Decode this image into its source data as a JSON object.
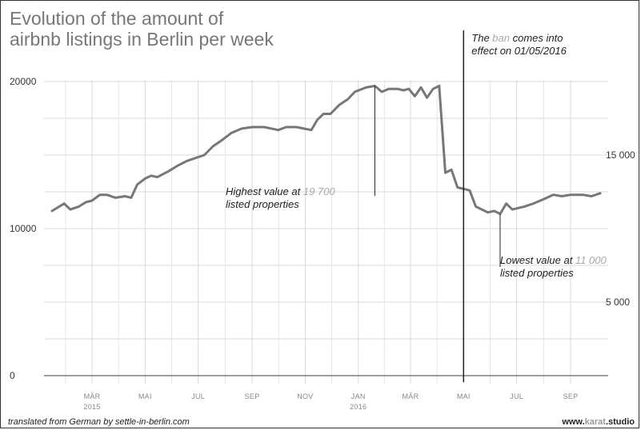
{
  "chart_data": {
    "type": "line",
    "title": "Evolution of the amount of airbnb listings in Berlin per week",
    "title_lines": [
      "Evolution of the amount of",
      "airbnb listings in Berlin per week"
    ],
    "xlabel": "",
    "ylabel": "",
    "grid": true,
    "ylim": [
      0,
      20000
    ],
    "y_ticks_left": [
      "20000",
      "10000",
      "0"
    ],
    "y_ticks_right": [
      "15 000",
      "5 000"
    ],
    "x_ticks": [
      {
        "label": "MÄR",
        "sub": "2015",
        "date": "2015-03-01"
      },
      {
        "label": "MAI",
        "sub": "",
        "date": "2015-05-01"
      },
      {
        "label": "JUL",
        "sub": "",
        "date": "2015-07-01"
      },
      {
        "label": "SEP",
        "sub": "",
        "date": "2015-09-01"
      },
      {
        "label": "NOV",
        "sub": "",
        "date": "2015-11-01"
      },
      {
        "label": "JAN",
        "sub": "2016",
        "date": "2016-01-01"
      },
      {
        "label": "MÄR",
        "sub": "",
        "date": "2016-03-01"
      },
      {
        "label": "MAI",
        "sub": "",
        "date": "2016-05-01"
      },
      {
        "label": "JUL",
        "sub": "",
        "date": "2016-07-01"
      },
      {
        "label": "SEP",
        "sub": "",
        "date": "2016-09-01"
      }
    ],
    "series": [
      {
        "color": "#777777",
        "points": [
          [
            "2015-01-14",
            11200
          ],
          [
            "2015-01-28",
            11700
          ],
          [
            "2015-02-04",
            11300
          ],
          [
            "2015-02-14",
            11500
          ],
          [
            "2015-02-22",
            11800
          ],
          [
            "2015-03-01",
            11900
          ],
          [
            "2015-03-10",
            12300
          ],
          [
            "2015-03-18",
            12300
          ],
          [
            "2015-03-28",
            12100
          ],
          [
            "2015-04-08",
            12200
          ],
          [
            "2015-04-15",
            12100
          ],
          [
            "2015-04-22",
            13000
          ],
          [
            "2015-05-01",
            13400
          ],
          [
            "2015-05-08",
            13600
          ],
          [
            "2015-05-15",
            13500
          ],
          [
            "2015-05-28",
            13900
          ],
          [
            "2015-06-08",
            14300
          ],
          [
            "2015-06-18",
            14600
          ],
          [
            "2015-06-28",
            14800
          ],
          [
            "2015-07-08",
            15000
          ],
          [
            "2015-07-18",
            15600
          ],
          [
            "2015-07-28",
            16000
          ],
          [
            "2015-08-08",
            16500
          ],
          [
            "2015-08-20",
            16800
          ],
          [
            "2015-09-01",
            16900
          ],
          [
            "2015-09-15",
            16900
          ],
          [
            "2015-10-01",
            16700
          ],
          [
            "2015-10-10",
            16900
          ],
          [
            "2015-10-22",
            16900
          ],
          [
            "2015-11-08",
            16700
          ],
          [
            "2015-11-15",
            17400
          ],
          [
            "2015-11-22",
            17800
          ],
          [
            "2015-11-30",
            17800
          ],
          [
            "2015-12-10",
            18400
          ],
          [
            "2015-12-20",
            18800
          ],
          [
            "2015-12-28",
            19300
          ],
          [
            "2016-01-10",
            19600
          ],
          [
            "2016-01-20",
            19700
          ],
          [
            "2016-01-28",
            19300
          ],
          [
            "2016-02-05",
            19500
          ],
          [
            "2016-02-15",
            19500
          ],
          [
            "2016-02-22",
            19400
          ],
          [
            "2016-02-28",
            19500
          ],
          [
            "2016-03-06",
            19000
          ],
          [
            "2016-03-13",
            19600
          ],
          [
            "2016-03-20",
            18900
          ],
          [
            "2016-03-27",
            19500
          ],
          [
            "2016-04-03",
            19700
          ],
          [
            "2016-04-10",
            13800
          ],
          [
            "2016-04-17",
            14000
          ],
          [
            "2016-04-24",
            12800
          ],
          [
            "2016-05-01",
            12700
          ],
          [
            "2016-05-08",
            12600
          ],
          [
            "2016-05-15",
            11500
          ],
          [
            "2016-05-22",
            11300
          ],
          [
            "2016-05-29",
            11100
          ],
          [
            "2016-06-05",
            11200
          ],
          [
            "2016-06-12",
            11000
          ],
          [
            "2016-06-19",
            11700
          ],
          [
            "2016-06-26",
            11300
          ],
          [
            "2016-07-10",
            11500
          ],
          [
            "2016-07-20",
            11700
          ],
          [
            "2016-08-01",
            12000
          ],
          [
            "2016-08-12",
            12300
          ],
          [
            "2016-08-22",
            12200
          ],
          [
            "2016-09-01",
            12300
          ],
          [
            "2016-09-15",
            12300
          ],
          [
            "2016-09-25",
            12200
          ],
          [
            "2016-10-05",
            12400
          ]
        ]
      }
    ],
    "annotations": {
      "ban": {
        "line1": "The ban comes into",
        "line1_accent": "ban",
        "line2": "effect on 01/05/2016",
        "date": "2016-05-01"
      },
      "highest": {
        "prefix": "Highest value at ",
        "value": "19 700",
        "line2": "listed properties",
        "date": "2016-01-20",
        "y": 19700
      },
      "lowest": {
        "prefix": "Lowest value at ",
        "value": "11 000",
        "line2": "listed properties",
        "date": "2016-06-12",
        "y": 11000
      }
    }
  },
  "footer": {
    "credit": "translated from German by settle-in-berlin.com",
    "brand_prefix": "www.",
    "brand_mid": "karat",
    "brand_suffix": ".studio"
  }
}
